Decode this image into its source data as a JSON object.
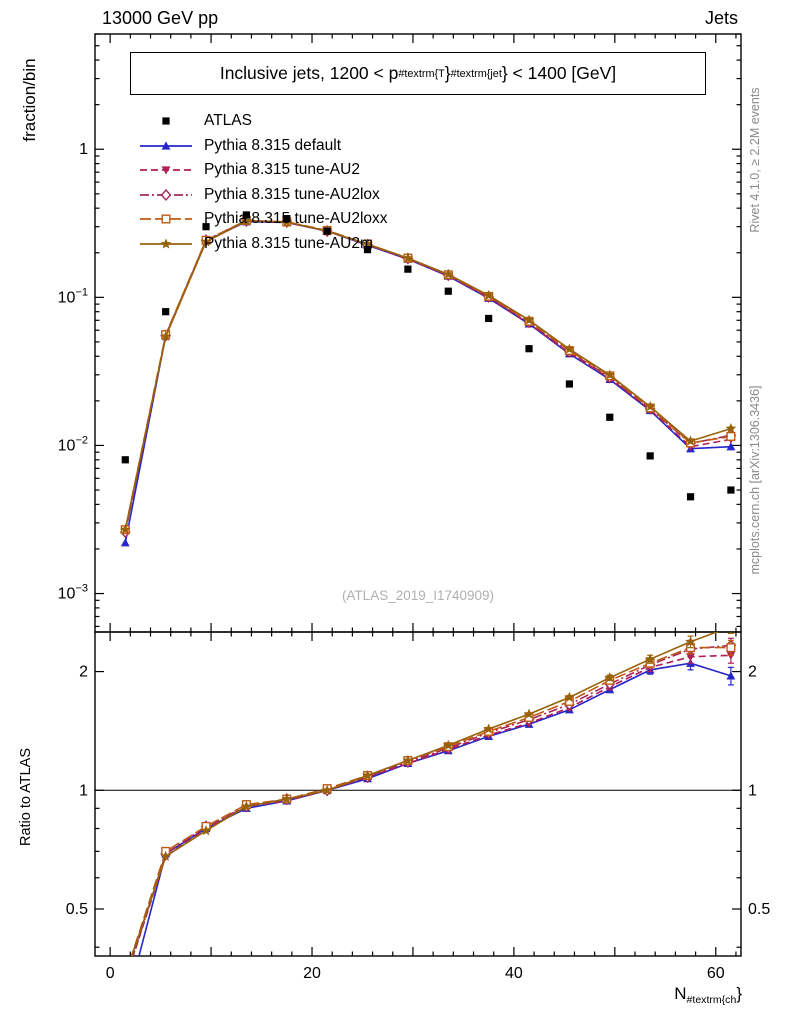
{
  "header": {
    "left": "13000 GeV pp",
    "right": "Jets"
  },
  "side_texts": {
    "top_right": "Rivet 4.1.0, ≥ 2.2M events",
    "bottom_right": "mcplots.cern.ch [arXiv:1306.3436]"
  },
  "watermark": "(ATLAS_2019_I1740909)",
  "title": {
    "pre": "Inclusive jets, 1200 < p",
    "sub": "#textrm{T",
    "mid": "}",
    "sup": "#textrm{jet",
    "post": "} < 1400 [GeV]"
  },
  "axes": {
    "ylabel_main": "fraction/bin",
    "ylabel_ratio": "Ratio to ATLAS",
    "xlabel": {
      "pre": "N",
      "sub": "#textrm{ch",
      "post": "}"
    }
  },
  "chart_data": {
    "type": "line",
    "x": [
      1.5,
      5.5,
      9.5,
      13.5,
      17.5,
      21.5,
      25.5,
      29.5,
      33.5,
      37.5,
      41.5,
      45.5,
      49.5,
      53.5,
      57.5,
      61.5
    ],
    "bin_width": 4,
    "xlim": [
      -1.5,
      62.5
    ],
    "xticks": [
      0,
      20,
      40,
      60
    ],
    "main_panel": {
      "yscale": "log",
      "ylim": [
        0.00055,
        6.0
      ],
      "yticks": [
        1,
        0.1,
        0.01,
        0.001
      ]
    },
    "ratio_panel": {
      "yscale": "log",
      "ylim": [
        0.38,
        2.52
      ],
      "yticks": [
        0.5,
        1,
        2
      ],
      "reference_line": 1
    },
    "ratio_err": [
      0,
      0,
      0,
      0,
      0,
      0,
      0,
      0,
      0,
      0,
      0,
      0.02,
      0.03,
      0.05,
      0.08,
      0.1
    ],
    "atlas": {
      "name": "ATLAS",
      "color": "#000000",
      "marker": "square-filled",
      "values": [
        0.008,
        0.08,
        0.3,
        0.36,
        0.34,
        0.28,
        0.21,
        0.155,
        0.11,
        0.072,
        0.045,
        0.026,
        0.0155,
        0.0085,
        0.0045,
        0.005
      ]
    },
    "series": [
      {
        "name": "Pythia 8.315 default",
        "color": "#2626c9",
        "line": "solid",
        "marker": "triangle-up-filled",
        "values": [
          0.0022,
          0.055,
          0.24,
          0.324,
          0.32,
          0.28,
          0.225,
          0.181,
          0.139,
          0.0986,
          0.0662,
          0.0416,
          0.0279,
          0.0172,
          0.0095,
          0.0098
        ],
        "ratio": [
          0.28,
          0.69,
          0.8,
          0.9,
          0.94,
          1.0,
          1.07,
          1.17,
          1.26,
          1.37,
          1.47,
          1.6,
          1.8,
          2.02,
          2.1,
          1.95
        ]
      },
      {
        "name": "Pythia 8.315 tune-AU2",
        "color": "#b01e55",
        "line": "dashed",
        "marker": "triangle-down-filled",
        "values": [
          0.0026,
          0.0544,
          0.24,
          0.328,
          0.32,
          0.28,
          0.227,
          0.181,
          0.14,
          0.0994,
          0.0666,
          0.0421,
          0.0284,
          0.0174,
          0.0098,
          0.011
        ],
        "ratio": [
          0.33,
          0.68,
          0.8,
          0.91,
          0.94,
          1.0,
          1.08,
          1.17,
          1.27,
          1.38,
          1.48,
          1.62,
          1.83,
          2.05,
          2.18,
          2.2
        ]
      },
      {
        "name": "Pythia 8.315 tune-AU2lox",
        "color": "#a3285f",
        "line": "dashdot",
        "marker": "diamond-open",
        "values": [
          0.0026,
          0.0552,
          0.243,
          0.328,
          0.323,
          0.28,
          0.227,
          0.183,
          0.141,
          0.1008,
          0.068,
          0.0429,
          0.0288,
          0.0177,
          0.0103,
          0.0117
        ],
        "ratio": [
          0.33,
          0.69,
          0.81,
          0.91,
          0.95,
          1.0,
          1.08,
          1.18,
          1.28,
          1.4,
          1.51,
          1.65,
          1.86,
          2.08,
          2.28,
          2.33
        ]
      },
      {
        "name": "Pythia 8.315 tune-AU2loxx",
        "color": "#c05a14",
        "line": "long-dashed",
        "marker": "square-open",
        "values": [
          0.0027,
          0.056,
          0.243,
          0.331,
          0.323,
          0.283,
          0.229,
          0.184,
          0.142,
          0.1015,
          0.0689,
          0.0437,
          0.0295,
          0.0179,
          0.0104,
          0.0115
        ],
        "ratio": [
          0.34,
          0.7,
          0.81,
          0.92,
          0.95,
          1.01,
          1.09,
          1.19,
          1.29,
          1.41,
          1.53,
          1.68,
          1.9,
          2.1,
          2.3,
          2.3
        ]
      },
      {
        "name": "Pythia 8.315 tune-AU2m",
        "color": "#98620a",
        "line": "solid",
        "marker": "star-filled",
        "values": [
          0.0027,
          0.0544,
          0.237,
          0.328,
          0.323,
          0.28,
          0.229,
          0.184,
          0.143,
          0.103,
          0.0702,
          0.0447,
          0.0299,
          0.0183,
          0.0107,
          0.013
        ],
        "ratio": [
          0.34,
          0.68,
          0.79,
          0.91,
          0.95,
          1.0,
          1.09,
          1.19,
          1.3,
          1.43,
          1.56,
          1.72,
          1.93,
          2.15,
          2.38,
          2.6
        ]
      }
    ]
  }
}
